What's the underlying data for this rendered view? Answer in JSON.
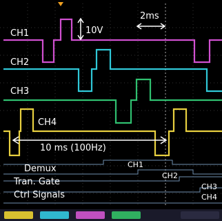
{
  "scale": {
    "volts": "10V",
    "time": "2ms"
  },
  "channels": [
    "CH1",
    "CH2",
    "CH3",
    "CH4"
  ],
  "measurement": "10 ms (100Hz)",
  "legend": {
    "lines": [
      "Demux",
      "Tran. Gate",
      "Ctrl Signals"
    ],
    "digital": [
      "CH1",
      "CH2",
      "CH3",
      "CH4"
    ]
  }
}
